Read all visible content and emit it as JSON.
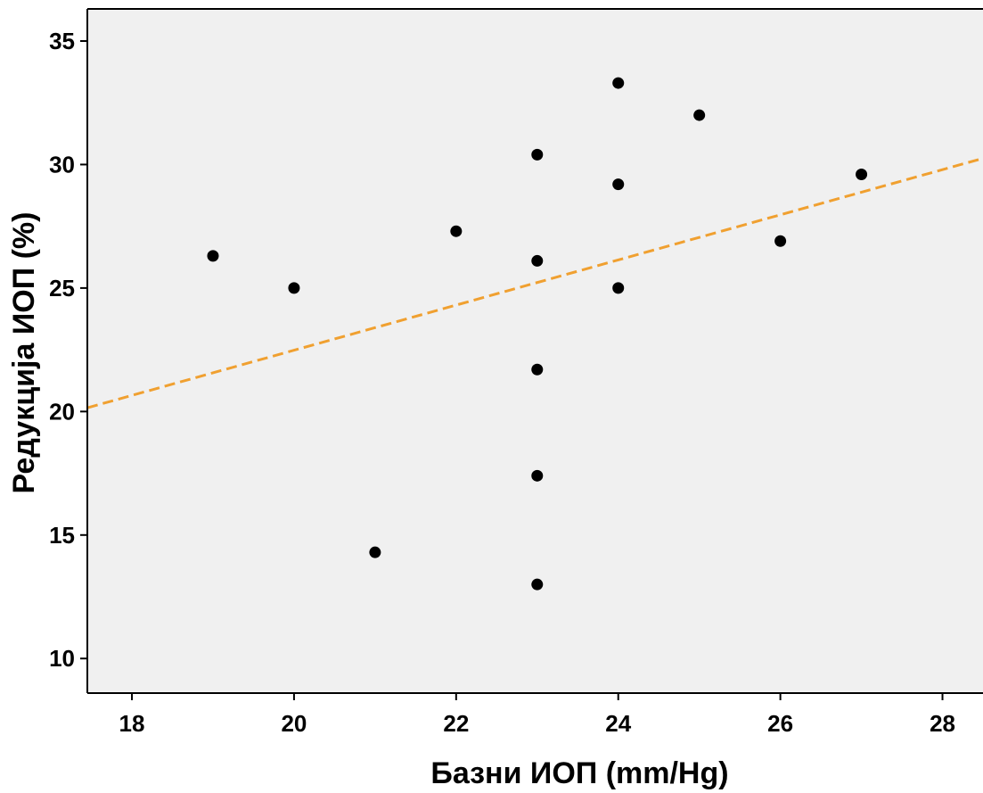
{
  "chart_data": {
    "type": "scatter",
    "title": "",
    "xlabel": "Базни ИОП (mm/Hg)",
    "ylabel": "Редукција ИОП (%)",
    "xlim": [
      17.45,
      28.5
    ],
    "ylim": [
      8.6,
      36.3
    ],
    "xticks": [
      18,
      20,
      22,
      24,
      26,
      28
    ],
    "yticks": [
      10,
      15,
      20,
      25,
      30,
      35
    ],
    "grid": false,
    "colors": {
      "plot_background": "#f0f0f0",
      "points": "#000000",
      "fit_line": "#f0a030",
      "axes": "#000000"
    },
    "points": [
      {
        "x": 19,
        "y": 26.3
      },
      {
        "x": 20,
        "y": 25.0
      },
      {
        "x": 21,
        "y": 14.3
      },
      {
        "x": 22,
        "y": 27.3
      },
      {
        "x": 23,
        "y": 30.4
      },
      {
        "x": 23,
        "y": 26.1
      },
      {
        "x": 23,
        "y": 21.7
      },
      {
        "x": 23,
        "y": 17.4
      },
      {
        "x": 23,
        "y": 13.0
      },
      {
        "x": 24,
        "y": 33.3
      },
      {
        "x": 24,
        "y": 29.2
      },
      {
        "x": 24,
        "y": 25.0
      },
      {
        "x": 25,
        "y": 32.0
      },
      {
        "x": 26,
        "y": 26.9
      },
      {
        "x": 27,
        "y": 29.6
      }
    ],
    "fit_line": {
      "style": "dashed",
      "start": {
        "x": 17.45,
        "y": 20.15
      },
      "end": {
        "x": 28.5,
        "y": 30.25
      }
    }
  }
}
